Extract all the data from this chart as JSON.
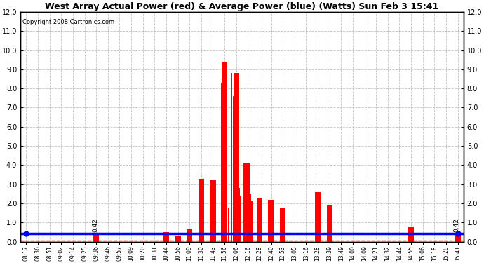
{
  "title": "West Array Actual Power (red) & Average Power (blue) (Watts) Sun Feb 3 15:41",
  "copyright": "Copyright 2008 Cartronics.com",
  "ylim": [
    0,
    12.0
  ],
  "yticks": [
    0.0,
    1.0,
    2.0,
    3.0,
    4.0,
    5.0,
    6.0,
    7.0,
    8.0,
    9.0,
    10.0,
    11.0,
    12.0
  ],
  "avg_power": 0.42,
  "avg_label": "0.42",
  "background_color": "#ffffff",
  "grid_color": "#bbbbbb",
  "bar_color": "#ff0000",
  "avg_line_color": "#0000ff",
  "x_labels": [
    "08:17",
    "08:36",
    "08:51",
    "09:02",
    "09:14",
    "09:25",
    "09:36",
    "09:46",
    "09:57",
    "10:09",
    "10:20",
    "10:31",
    "10:44",
    "10:56",
    "11:09",
    "11:30",
    "11:43",
    "11:56",
    "12:06",
    "12:16",
    "12:28",
    "12:40",
    "12:53",
    "13:05",
    "13:16",
    "13:28",
    "13:39",
    "13:49",
    "14:00",
    "14:09",
    "14:21",
    "14:32",
    "14:44",
    "14:55",
    "15:06",
    "15:18",
    "15:28",
    "15:41"
  ],
  "spike_values": {
    "08:17": 0.0,
    "08:36": 0.0,
    "08:51": 0.0,
    "09:02": 0.0,
    "09:14": 0.0,
    "09:25": 0.0,
    "09:36": 0.42,
    "09:46": 0.0,
    "09:57": 0.0,
    "10:09": 0.0,
    "10:20": 0.0,
    "10:31": 0.0,
    "10:44": 0.5,
    "10:56": 0.28,
    "11:09": 0.7,
    "11:30": 3.3,
    "11:43": 3.2,
    "11:56": 9.4,
    "12:06": 8.8,
    "12:16": 4.1,
    "12:28": 2.3,
    "12:40": 2.2,
    "12:53": 1.8,
    "13:05": 0.0,
    "13:16": 0.0,
    "13:28": 2.6,
    "13:39": 1.9,
    "13:49": 0.0,
    "14:00": 0.0,
    "14:09": 0.0,
    "14:21": 0.0,
    "14:32": 0.0,
    "14:44": 0.0,
    "14:55": 0.8,
    "15:06": 0.0,
    "15:18": 0.0,
    "15:28": 0.0,
    "15:41": 0.42
  },
  "dense_spike_indices": [
    17,
    18
  ],
  "dense_spike_values": [
    [
      9.4,
      9.0,
      8.5,
      8.0,
      7.5,
      7.0,
      6.5,
      6.0,
      5.5,
      5.0,
      4.5,
      4.0,
      3.5,
      3.0,
      2.5,
      2.2,
      2.0
    ],
    [
      4.1,
      3.8,
      3.5,
      3.2,
      2.9,
      2.6,
      2.3,
      2.0
    ]
  ]
}
